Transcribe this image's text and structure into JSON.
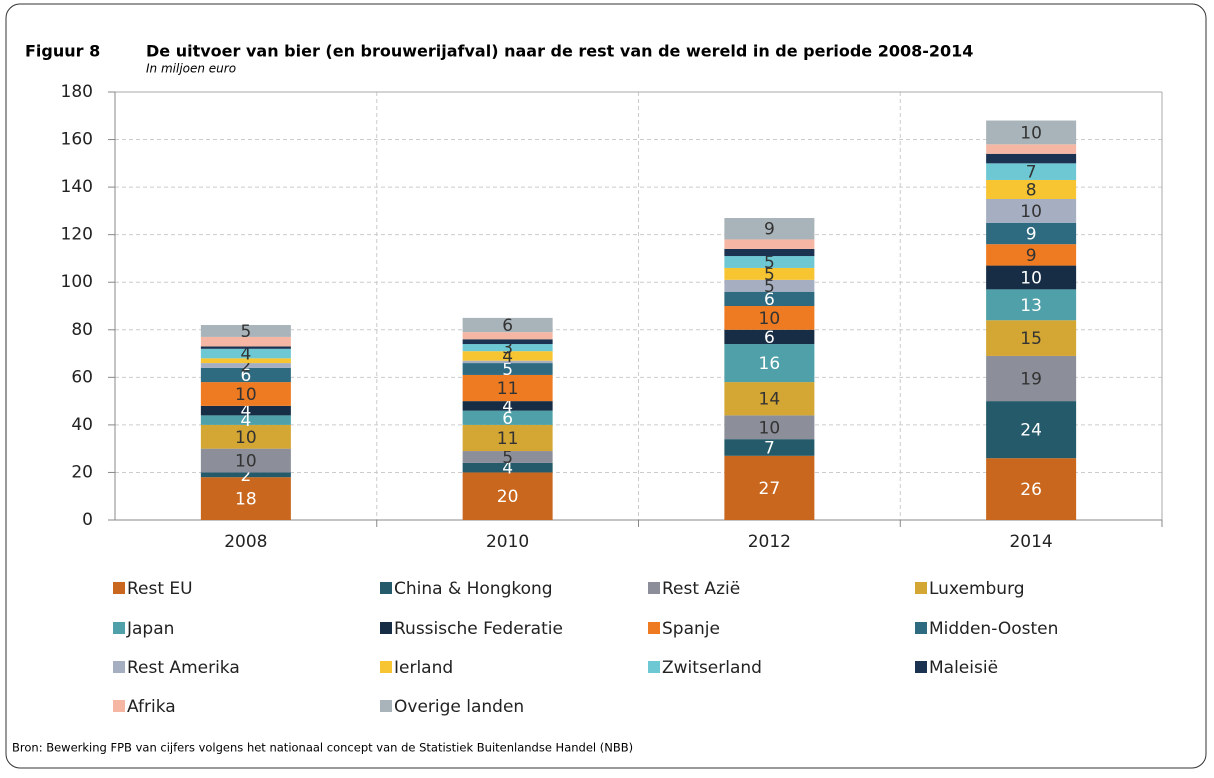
{
  "figure_label": "Figuur 8",
  "source": "Bron: Bewerking FPB van cijfers volgens het nationaal concept van de Statistiek Buitenlandse Handel (NBB)",
  "chart_data": {
    "type": "stacked_bar",
    "title": "De uitvoer van bier (en brouwerijafval) naar de rest van de wereld in de periode 2008-2014",
    "subtitle": "In miljoen euro",
    "categories": [
      "2008",
      "2010",
      "2012",
      "2014"
    ],
    "ylim": [
      0,
      180
    ],
    "yticks": [
      0,
      20,
      40,
      60,
      80,
      100,
      120,
      140,
      160,
      180
    ],
    "grid": true,
    "series": [
      {
        "name": "Rest EU",
        "color": "#c8671d",
        "values": [
          18,
          20,
          27,
          26
        ],
        "value_labels": [
          "18",
          "20",
          "27",
          "26"
        ]
      },
      {
        "name": "China & Hongkong",
        "color": "#245a69",
        "values": [
          2,
          4,
          7,
          24
        ],
        "value_labels": [
          "2",
          "4",
          "7",
          "24"
        ]
      },
      {
        "name": "Rest Azië",
        "color": "#8c8f99",
        "values": [
          10,
          5,
          10,
          19
        ],
        "value_labels": [
          "10",
          "5",
          "10",
          "19"
        ]
      },
      {
        "name": "Luxemburg",
        "color": "#d4a633",
        "values": [
          10,
          11,
          14,
          15
        ],
        "value_labels": [
          "10",
          "11",
          "14",
          "15"
        ]
      },
      {
        "name": "Japan",
        "color": "#4fa0a8",
        "values": [
          4,
          6,
          16,
          13
        ],
        "value_labels": [
          "4",
          "6",
          "16",
          "13"
        ]
      },
      {
        "name": "Russische Federatie",
        "color": "#172d45",
        "values": [
          4,
          4,
          6,
          10
        ],
        "value_labels": [
          "4",
          "4",
          "6",
          "10"
        ]
      },
      {
        "name": "Spanje",
        "color": "#ee7b22",
        "values": [
          10,
          11,
          10,
          9
        ],
        "value_labels": [
          "10",
          "11",
          "10",
          "9"
        ]
      },
      {
        "name": "Midden-Oosten",
        "color": "#2f6b80",
        "values": [
          6,
          5,
          6,
          9
        ],
        "value_labels": [
          "6",
          "5",
          "6",
          "9"
        ]
      },
      {
        "name": "Rest Amerika",
        "color": "#a6afc2",
        "values": [
          2,
          1,
          5,
          10
        ],
        "value_labels": [
          "2",
          null,
          "5",
          "10"
        ]
      },
      {
        "name": "Ierland",
        "color": "#f7c531",
        "values": [
          2,
          4,
          5,
          8
        ],
        "value_labels": [
          null,
          "4",
          "5",
          "8"
        ]
      },
      {
        "name": "Zwitserland",
        "color": "#6dc8d4",
        "values": [
          4,
          3,
          5,
          7
        ],
        "value_labels": [
          "4",
          "3",
          "5",
          "7"
        ]
      },
      {
        "name": "Maleisië",
        "color": "#1b3350",
        "values": [
          1,
          2,
          3,
          4
        ],
        "value_labels": [
          null,
          null,
          null,
          null
        ]
      },
      {
        "name": "Afrika",
        "color": "#f5b7a3",
        "values": [
          4,
          3,
          4,
          4
        ],
        "value_labels": [
          null,
          null,
          null,
          null
        ]
      },
      {
        "name": "Overige landen",
        "color": "#a9b4ba",
        "values": [
          5,
          6,
          9,
          10
        ],
        "value_labels": [
          "5",
          "6",
          "9",
          "10"
        ]
      }
    ]
  }
}
